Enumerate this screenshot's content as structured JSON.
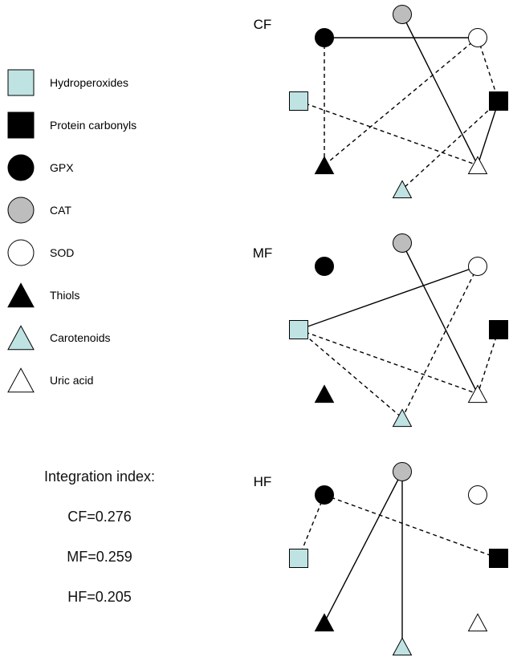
{
  "legend": [
    {
      "key": "hydroperoxides",
      "label": "Hydroperoxides",
      "shape": "square",
      "fill": "#bfe3e3"
    },
    {
      "key": "protein_carbonyls",
      "label": "Protein carbonyls",
      "shape": "square",
      "fill": "#000000"
    },
    {
      "key": "gpx",
      "label": "GPX",
      "shape": "circle",
      "fill": "#000000"
    },
    {
      "key": "cat",
      "label": "CAT",
      "shape": "circle",
      "fill": "#bdbdbd"
    },
    {
      "key": "sod",
      "label": "SOD",
      "shape": "circle",
      "fill": "#ffffff"
    },
    {
      "key": "thiols",
      "label": "Thiols",
      "shape": "triangle",
      "fill": "#000000"
    },
    {
      "key": "carotenoids",
      "label": "Carotenoids",
      "shape": "triangle",
      "fill": "#bfe3e3"
    },
    {
      "key": "uric_acid",
      "label": "Uric acid",
      "shape": "triangle",
      "fill": "#ffffff"
    }
  ],
  "integration": {
    "title": "Integration index:",
    "values": [
      "CF=0.276",
      "MF=0.259",
      "HF=0.205"
    ]
  },
  "panels": [
    {
      "label": "CF",
      "edges": [
        {
          "from": "gpx",
          "to": "sod",
          "style": "solid"
        },
        {
          "from": "cat",
          "to": "uric_acid",
          "style": "solid"
        },
        {
          "from": "protein_carbonyls",
          "to": "uric_acid",
          "style": "solid"
        },
        {
          "from": "gpx",
          "to": "thiols",
          "style": "dashed"
        },
        {
          "from": "sod",
          "to": "protein_carbonyls",
          "style": "dashed"
        },
        {
          "from": "sod",
          "to": "thiols",
          "style": "dashed"
        },
        {
          "from": "hydroperoxides",
          "to": "uric_acid",
          "style": "dashed"
        },
        {
          "from": "protein_carbonyls",
          "to": "carotenoids",
          "style": "dashed"
        }
      ]
    },
    {
      "label": "MF",
      "edges": [
        {
          "from": "sod",
          "to": "hydroperoxides",
          "style": "solid"
        },
        {
          "from": "cat",
          "to": "uric_acid",
          "style": "solid"
        },
        {
          "from": "sod",
          "to": "carotenoids",
          "style": "dashed"
        },
        {
          "from": "hydroperoxides",
          "to": "uric_acid",
          "style": "dashed"
        },
        {
          "from": "hydroperoxides",
          "to": "carotenoids",
          "style": "dashed"
        },
        {
          "from": "protein_carbonyls",
          "to": "uric_acid",
          "style": "dashed"
        }
      ]
    },
    {
      "label": "HF",
      "edges": [
        {
          "from": "cat",
          "to": "thiols",
          "style": "solid"
        },
        {
          "from": "cat",
          "to": "carotenoids",
          "style": "solid"
        },
        {
          "from": "gpx",
          "to": "hydroperoxides",
          "style": "dashed"
        },
        {
          "from": "gpx",
          "to": "protein_carbonyls",
          "style": "dashed"
        }
      ]
    }
  ]
}
